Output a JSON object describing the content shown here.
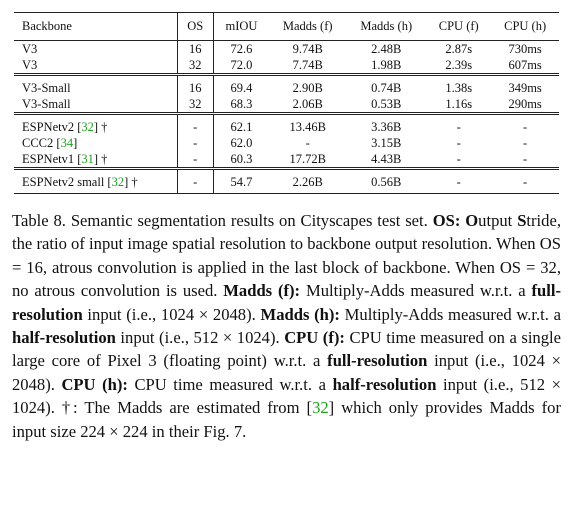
{
  "table": {
    "header": [
      "Backbone",
      "OS",
      "mIOU",
      "Madds (f)",
      "Madds (h)",
      "CPU (f)",
      "CPU (h)"
    ],
    "groups": [
      [
        [
          "V3",
          "16",
          "72.6",
          "9.74B",
          "2.48B",
          "2.87s",
          "730ms"
        ],
        [
          "V3",
          "32",
          "72.0",
          "7.74B",
          "1.98B",
          "2.39s",
          "607ms"
        ]
      ],
      [
        [
          "V3-Small",
          "16",
          "69.4",
          "2.90B",
          "0.74B",
          "1.38s",
          "349ms"
        ],
        [
          "V3-Small",
          "32",
          "68.3",
          "2.06B",
          "0.53B",
          "1.16s",
          "290ms"
        ]
      ],
      [
        [
          [
            "ESPNetv2 [",
            "32",
            "] †"
          ],
          "-",
          "62.1",
          "13.46B",
          "3.36B",
          "-",
          "-"
        ],
        [
          [
            "CCC2 [",
            "34",
            "]"
          ],
          "-",
          "62.0",
          "-",
          "3.15B",
          "-",
          "-"
        ],
        [
          [
            "ESPNetv1 [",
            "31",
            "] †"
          ],
          "-",
          "60.3",
          "17.72B",
          "4.43B",
          "-",
          "-"
        ]
      ],
      [
        [
          [
            "ESPNetv2 small [",
            "32",
            "] †"
          ],
          "-",
          "54.7",
          "2.26B",
          "0.56B",
          "-",
          "-"
        ]
      ]
    ]
  },
  "caption": [
    "Table 8. Semantic segmentation results on Cityscapes test set.",
    "OS:",
    "O",
    "utput",
    "S",
    "tride, the ratio of input image spatial resolution to backbone output resolution. When OS = 16, atrous convolution is applied in the last block of backbone. When OS = 32, no atrous convolution is used.",
    "Madds (f):",
    "Multiply-Adds measured w.r.t. a",
    "full-resolution",
    "input (i.e., 1024 × 2048).",
    "Madds (h):",
    "Multiply-Adds measured w.r.t. a",
    "half-resolution",
    "input (i.e., 512 × 1024).",
    "CPU (f):",
    "CPU time measured on a single large core of Pixel 3 (floating point) w.r.t. a",
    "full-resolution",
    "input (i.e., 1024 × 2048).",
    "CPU (h):",
    "CPU time measured w.r.t. a",
    "half-resolution",
    "input (i.e., 512 × 1024). †: The Madds are estimated from [",
    "32",
    "] which only provides Madds for input size 224 × 224 in their Fig. 7."
  ]
}
